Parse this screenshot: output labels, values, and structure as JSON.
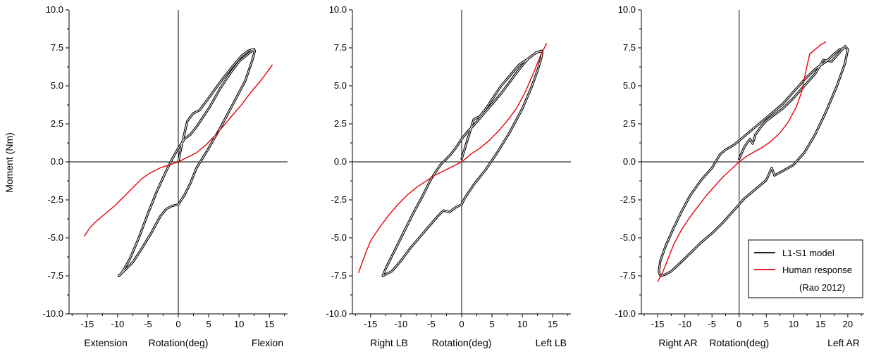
{
  "figure": {
    "ylabel": "Moment (Nm)"
  },
  "chart_data": [
    {
      "type": "line",
      "ylabel": "Moment (Nm)",
      "xlim": [
        -18,
        18
      ],
      "ylim": [
        -10,
        10
      ],
      "x_ticks": [
        -15,
        -10,
        -5,
        0,
        5,
        10,
        15
      ],
      "y_ticks": [
        -10.0,
        -7.5,
        -5.0,
        -2.5,
        0.0,
        2.5,
        5.0,
        7.5,
        10.0
      ],
      "x_tick_labels": [
        "-15",
        "-10",
        "-5",
        "0",
        "5",
        "10",
        "15"
      ],
      "y_tick_labels": [
        "-10.0",
        "-7.5",
        "-5.0",
        "-2.5",
        "0.0",
        "2.5",
        "5.0",
        "7.5",
        "10.0"
      ],
      "xlabel_left": "Extension",
      "xlabel_center": "Rotation(deg)",
      "xlabel_right": "Flexion",
      "grid": false,
      "series": [
        {
          "name": "L1-S1 model",
          "color": "#000000",
          "x": [
            0,
            0.5,
            1.5,
            2.5,
            3.5,
            5,
            7,
            9,
            10.5,
            11.5,
            12.3,
            12.6,
            12.2,
            11,
            9,
            7,
            5,
            3,
            2,
            1,
            0,
            -1,
            -2,
            -3,
            -4.5,
            -6,
            -7.5,
            -8.5,
            -9.5,
            -9.8,
            -9.3,
            -8,
            -6.5,
            -5,
            -3.5,
            -2,
            -1,
            0,
            1,
            2,
            3,
            4,
            5,
            6,
            7,
            8.5,
            10,
            11.5,
            12.5
          ],
          "y": [
            0,
            1,
            2.7,
            3.2,
            3.4,
            4.2,
            5.3,
            6.3,
            7,
            7.3,
            7.4,
            7.3,
            6.7,
            5.3,
            3.8,
            2.3,
            0.9,
            -0.4,
            -1.4,
            -2.2,
            -2.8,
            -2.9,
            -3.1,
            -3.6,
            -4.7,
            -5.7,
            -6.6,
            -7,
            -7.4,
            -7.5,
            -7.3,
            -6.4,
            -5,
            -3.4,
            -1.9,
            -0.6,
            0.2,
            0.9,
            1.5,
            1.8,
            2.3,
            2.9,
            3.5,
            4.2,
            4.9,
            5.8,
            6.6,
            7.1,
            7.4
          ]
        },
        {
          "name": "Human response",
          "color": "#e8000b",
          "x": [
            -15.5,
            -14.5,
            -13.5,
            -12,
            -10.5,
            -9,
            -7.5,
            -6,
            -4.5,
            -3,
            -1.5,
            0,
            1.5,
            3,
            4.5,
            6,
            7.5,
            9,
            10.5,
            12,
            13.5,
            15,
            15.5
          ],
          "y": [
            -4.9,
            -4.3,
            -3.9,
            -3.4,
            -2.9,
            -2.3,
            -1.7,
            -1.1,
            -0.7,
            -0.4,
            -0.2,
            0,
            0.3,
            0.6,
            1.1,
            1.7,
            2.4,
            3.1,
            3.8,
            4.6,
            5.3,
            6.1,
            6.4
          ]
        }
      ]
    },
    {
      "type": "line",
      "ylabel": "Moment (Nm)",
      "xlim": [
        -18,
        18
      ],
      "ylim": [
        -10,
        10
      ],
      "x_ticks": [
        -15,
        -10,
        -5,
        0,
        5,
        10,
        15
      ],
      "y_ticks": [
        -10.0,
        -7.5,
        -5.0,
        -2.5,
        0.0,
        2.5,
        5.0,
        7.5,
        10.0
      ],
      "x_tick_labels": [
        "-15",
        "-10",
        "-5",
        "0",
        "5",
        "10",
        "15"
      ],
      "y_tick_labels": [
        "-10.0",
        "-7.5",
        "-5.0",
        "-2.5",
        "0.0",
        "2.5",
        "5.0",
        "7.5",
        "10.0"
      ],
      "xlabel_left": "Right LB",
      "xlabel_center": "Rotation(deg)",
      "xlabel_right": "Left LB",
      "grid": false,
      "series": [
        {
          "name": "L1-S1 model",
          "color": "#000000",
          "x": [
            0,
            1,
            2,
            3,
            4,
            5,
            6.5,
            8,
            9.5,
            11,
            12,
            13,
            13.3,
            13.1,
            12.5,
            11.5,
            10,
            8,
            6,
            4,
            2,
            0.5,
            0,
            -1,
            -2,
            -3,
            -4,
            -5.5,
            -7,
            -8.5,
            -10,
            -11.5,
            -12.5,
            -13,
            -12.5,
            -11,
            -9.5,
            -8,
            -6.5,
            -5,
            -3.5,
            -2,
            -1,
            0,
            1,
            2,
            3.5,
            5,
            6.5,
            8,
            9.5,
            11,
            12.3,
            13.2
          ],
          "y": [
            0.2,
            1.5,
            2.8,
            3,
            3.5,
            4.1,
            5,
            5.7,
            6.4,
            6.8,
            7.1,
            7.3,
            7.2,
            6.8,
            6,
            4.9,
            3.5,
            2,
            0.7,
            -0.5,
            -1.5,
            -2.4,
            -2.8,
            -3,
            -3.3,
            -3.2,
            -3.6,
            -4.3,
            -5,
            -5.7,
            -6.5,
            -7.2,
            -7.4,
            -7.5,
            -7,
            -5.8,
            -4.6,
            -3.4,
            -2.3,
            -1.1,
            -0.2,
            0.4,
            0.9,
            1.5,
            2,
            2.4,
            3.1,
            3.8,
            4.5,
            5.3,
            6.1,
            6.8,
            7.2,
            7.3
          ]
        },
        {
          "name": "Human response",
          "color": "#e8000b",
          "x": [
            -17,
            -16,
            -15,
            -13.5,
            -12,
            -10.5,
            -9,
            -7.5,
            -6,
            -4.5,
            -3,
            -1.5,
            0,
            1.5,
            3,
            4.5,
            6,
            7.5,
            9,
            10.5,
            12,
            13,
            14
          ],
          "y": [
            -7.3,
            -6.2,
            -5.2,
            -4.3,
            -3.5,
            -2.8,
            -2.2,
            -1.7,
            -1.3,
            -0.9,
            -0.6,
            -0.3,
            0,
            0.5,
            0.9,
            1.4,
            2,
            2.7,
            3.5,
            4.6,
            6,
            7,
            7.8
          ]
        }
      ]
    },
    {
      "type": "line",
      "ylabel": "Moment (Nm)",
      "xlim": [
        -18,
        23
      ],
      "ylim": [
        -10,
        10
      ],
      "x_ticks": [
        -15,
        -10,
        -5,
        0,
        5,
        10,
        15,
        20
      ],
      "y_ticks": [
        -10.0,
        -7.5,
        -5.0,
        -2.5,
        0.0,
        2.5,
        5.0,
        7.5,
        10.0
      ],
      "x_tick_labels": [
        "-15",
        "-10",
        "-5",
        "0",
        "5",
        "10",
        "15",
        "20"
      ],
      "y_tick_labels": [
        "-10.0",
        "-7.5",
        "-5.0",
        "-2.5",
        "0.0",
        "2.5",
        "5.0",
        "7.5",
        "10.0"
      ],
      "xlabel_left": "Right AR",
      "xlabel_center": "Rotation(deg)",
      "xlabel_right": "Left AR",
      "grid": false,
      "legend": "bottom-right",
      "legend_note": "(Rao 2012)",
      "series": [
        {
          "name": "L1-S1 model",
          "color": "#000000",
          "x": [
            0,
            1,
            2,
            2.5,
            3,
            4,
            5,
            6.5,
            8,
            10,
            12,
            14,
            15.5,
            17,
            18.5,
            19.5,
            20,
            19.5,
            18,
            16,
            14,
            12,
            10,
            8,
            6.5,
            6,
            5,
            3,
            1,
            0,
            -1,
            -3,
            -5,
            -7,
            -9,
            -11,
            -12.5,
            -13.5,
            -14.5,
            -14.8,
            -14.5,
            -13.5,
            -12,
            -10.5,
            -9,
            -7,
            -5,
            -3.5,
            -2.5,
            -1,
            0,
            2,
            4,
            6,
            8,
            10,
            12,
            14,
            16,
            17.5,
            18.5,
            19.5
          ],
          "y": [
            0.2,
            1,
            1.5,
            1.2,
            1.8,
            2.3,
            2.7,
            3.1,
            3.5,
            4.2,
            5,
            5.8,
            6.7,
            6.6,
            7.2,
            7.6,
            7.4,
            6.5,
            5,
            3.3,
            1.8,
            0.6,
            -0.2,
            -0.6,
            -0.9,
            -0.4,
            -1.2,
            -1.8,
            -2.4,
            -2.8,
            -3.2,
            -4,
            -4.7,
            -5.3,
            -6,
            -6.7,
            -7.2,
            -7.4,
            -7.5,
            -7.2,
            -6.5,
            -5.5,
            -4.3,
            -3.2,
            -2.2,
            -1.2,
            -0.4,
            0.5,
            0.8,
            1.1,
            1.4,
            2,
            2.6,
            3.2,
            3.8,
            4.6,
            5.4,
            6.1,
            6.6,
            7.1,
            7.4,
            7.5
          ]
        },
        {
          "name": "Human response",
          "color": "#e8000b",
          "x": [
            -15,
            -14,
            -13,
            -12,
            -10.5,
            -9,
            -7.5,
            -6,
            -4.5,
            -3,
            -1.5,
            0,
            1.5,
            3,
            4.5,
            6,
            7.5,
            9,
            10.5,
            11.5,
            12.3,
            13,
            14,
            15,
            16
          ],
          "y": [
            -7.9,
            -7.2,
            -6.3,
            -5.4,
            -4.4,
            -3.6,
            -2.9,
            -2.2,
            -1.6,
            -1,
            -0.5,
            0,
            0.4,
            0.7,
            1,
            1.4,
            1.9,
            2.6,
            3.6,
            4.6,
            6,
            7.1,
            7.4,
            7.7,
            7.9
          ]
        }
      ]
    }
  ]
}
